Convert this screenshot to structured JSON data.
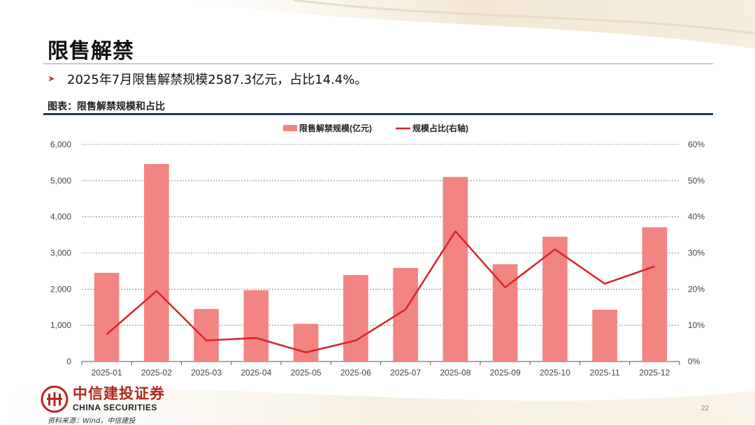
{
  "slide": {
    "title": "限售解禁",
    "bullet": "2025年7月限售解禁规模2587.3亿元，占比14.4%。",
    "caption": "图表：限售解禁规模和占比",
    "source": "资料来源：Wind，中信建投",
    "page_number": "22"
  },
  "logo": {
    "name_cn": "中信建投证券",
    "name_en": "CHINA SECURITIES"
  },
  "colors": {
    "bar": "#f28482",
    "line": "#d62424",
    "accent_rule": "#1f3a5f",
    "logo_red": "#b3261e"
  },
  "chart_data": {
    "type": "bar+line",
    "categories": [
      "2025-01",
      "2025-02",
      "2025-03",
      "2025-04",
      "2025-05",
      "2025-06",
      "2025-07",
      "2025-08",
      "2025-09",
      "2025-10",
      "2025-11",
      "2025-12"
    ],
    "series": [
      {
        "name": "限售解禁规模(亿元)",
        "type": "bar",
        "axis": "left",
        "values": [
          2450,
          5460,
          1450,
          1970,
          1040,
          2390,
          2587.3,
          5100,
          2690,
          3450,
          1430,
          3710
        ]
      },
      {
        "name": "规模占比(右轴)",
        "type": "line",
        "axis": "right",
        "values": [
          7.5,
          19.5,
          5.8,
          6.5,
          2.5,
          5.8,
          14.4,
          36.0,
          20.5,
          31.0,
          21.5,
          26.3
        ]
      }
    ],
    "y_left": {
      "min": 0,
      "max": 6000,
      "ticks": [
        "0",
        "1,000",
        "2,000",
        "3,000",
        "4,000",
        "5,000",
        "6,000"
      ],
      "tick_values": [
        0,
        1000,
        2000,
        3000,
        4000,
        5000,
        6000
      ]
    },
    "y_right": {
      "min": 0,
      "max": 60,
      "ticks": [
        "0%",
        "10%",
        "20%",
        "30%",
        "40%",
        "50%",
        "60%"
      ],
      "tick_values": [
        0,
        10,
        20,
        30,
        40,
        50,
        60
      ]
    },
    "grid": true,
    "legend_position": "top-center"
  }
}
